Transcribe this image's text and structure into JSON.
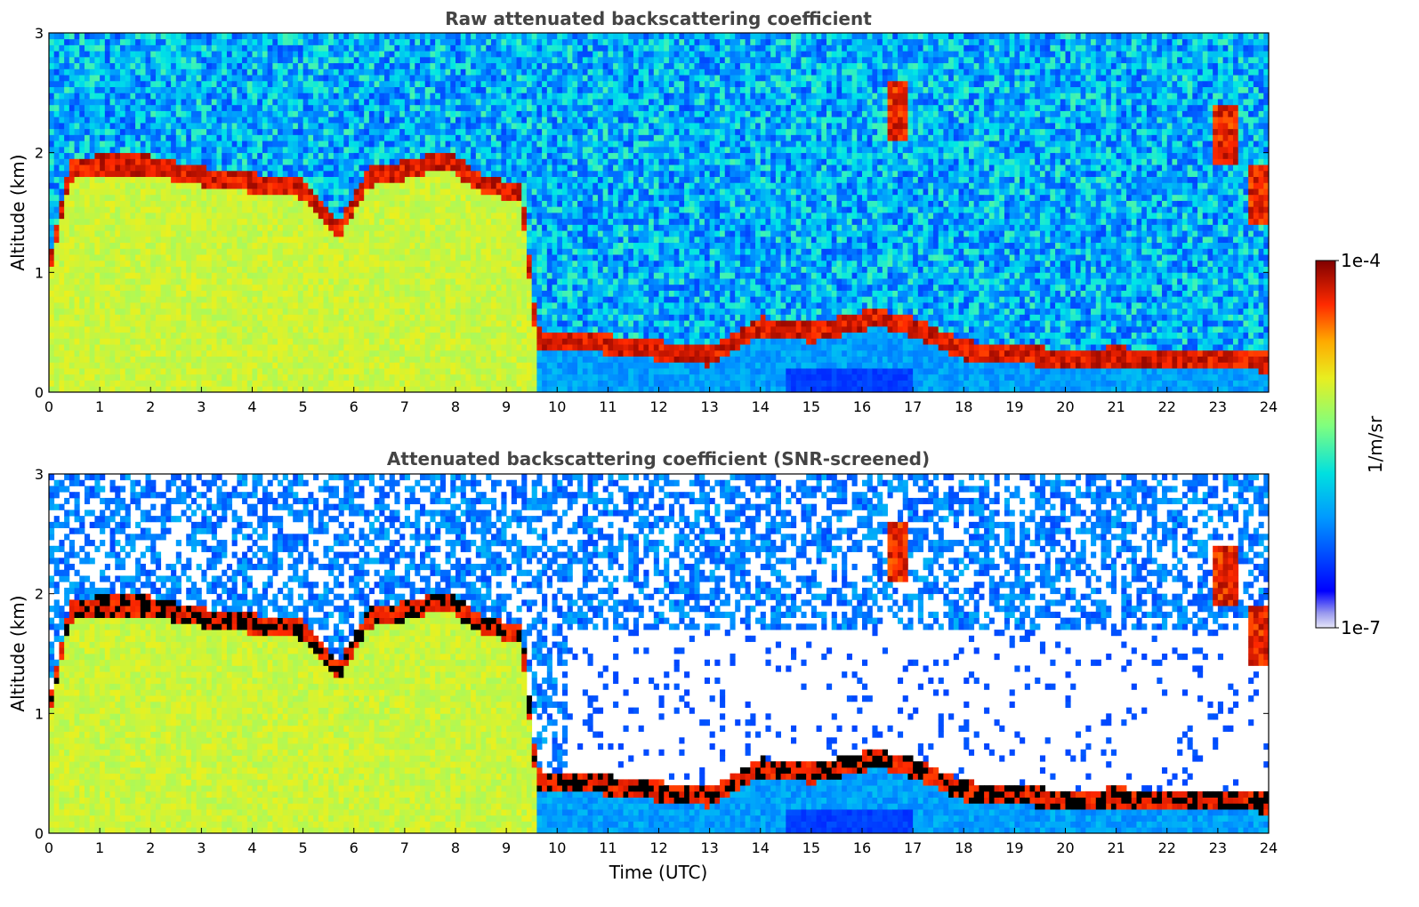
{
  "chart_data": [
    {
      "type": "heatmap",
      "title": "Raw attenuated backscattering coefficient",
      "xlabel": "",
      "ylabel": "Altitude (km)",
      "xlim": [
        0,
        24
      ],
      "ylim": [
        0,
        3
      ],
      "x_ticks": [
        "0",
        "1",
        "2",
        "3",
        "4",
        "5",
        "6",
        "7",
        "8",
        "9",
        "10",
        "11",
        "12",
        "13",
        "14",
        "15",
        "16",
        "17",
        "18",
        "19",
        "20",
        "21",
        "22",
        "23",
        "24"
      ],
      "y_ticks": [
        "0",
        "1",
        "2",
        "3"
      ],
      "screened": false,
      "boundary_layer_top_km": [
        {
          "t": 0.0,
          "h": 1.0
        },
        {
          "t": 0.4,
          "h": 1.85
        },
        {
          "t": 1.0,
          "h": 1.9
        },
        {
          "t": 2.0,
          "h": 1.9
        },
        {
          "t": 3.0,
          "h": 1.8
        },
        {
          "t": 4.0,
          "h": 1.75
        },
        {
          "t": 5.0,
          "h": 1.7
        },
        {
          "t": 5.7,
          "h": 1.35
        },
        {
          "t": 6.3,
          "h": 1.8
        },
        {
          "t": 7.0,
          "h": 1.85
        },
        {
          "t": 7.8,
          "h": 1.95
        },
        {
          "t": 8.5,
          "h": 1.75
        },
        {
          "t": 9.3,
          "h": 1.65
        },
        {
          "t": 9.6,
          "h": 0.45
        },
        {
          "t": 11.0,
          "h": 0.4
        },
        {
          "t": 12.0,
          "h": 0.35
        },
        {
          "t": 13.0,
          "h": 0.3
        },
        {
          "t": 14.0,
          "h": 0.55
        },
        {
          "t": 15.0,
          "h": 0.5
        },
        {
          "t": 16.3,
          "h": 0.62
        },
        {
          "t": 17.0,
          "h": 0.55
        },
        {
          "t": 18.0,
          "h": 0.35
        },
        {
          "t": 19.0,
          "h": 0.32
        },
        {
          "t": 20.0,
          "h": 0.28
        },
        {
          "t": 21.0,
          "h": 0.3
        },
        {
          "t": 22.0,
          "h": 0.28
        },
        {
          "t": 23.0,
          "h": 0.28
        },
        {
          "t": 24.0,
          "h": 0.25
        }
      ],
      "features": [
        {
          "name": "elevated-layer",
          "t": 16.7,
          "h": 2.35,
          "value": "high"
        },
        {
          "name": "cloud-column",
          "t": 23.2,
          "h": 2.15,
          "value": "high"
        },
        {
          "name": "cloud-column",
          "t": 23.8,
          "h": 1.65,
          "value": "high"
        }
      ]
    },
    {
      "type": "heatmap",
      "title": "Attenuated backscattering coefficient (SNR-screened)",
      "xlabel": "Time (UTC)",
      "ylabel": "Altitude (km)",
      "xlim": [
        0,
        24
      ],
      "ylim": [
        0,
        3
      ],
      "x_ticks": [
        "0",
        "1",
        "2",
        "3",
        "4",
        "5",
        "6",
        "7",
        "8",
        "9",
        "10",
        "11",
        "12",
        "13",
        "14",
        "15",
        "16",
        "17",
        "18",
        "19",
        "20",
        "21",
        "22",
        "23",
        "24"
      ],
      "y_ticks": [
        "0",
        "1",
        "2",
        "3"
      ],
      "screened": true
    }
  ],
  "colorbar": {
    "label": "1/m/sr",
    "max_label": "1e-4",
    "min_label": "1e-7",
    "range": [
      1e-07,
      0.0001
    ],
    "colormap": "jet",
    "low_end_color": "#e6e6f8"
  }
}
